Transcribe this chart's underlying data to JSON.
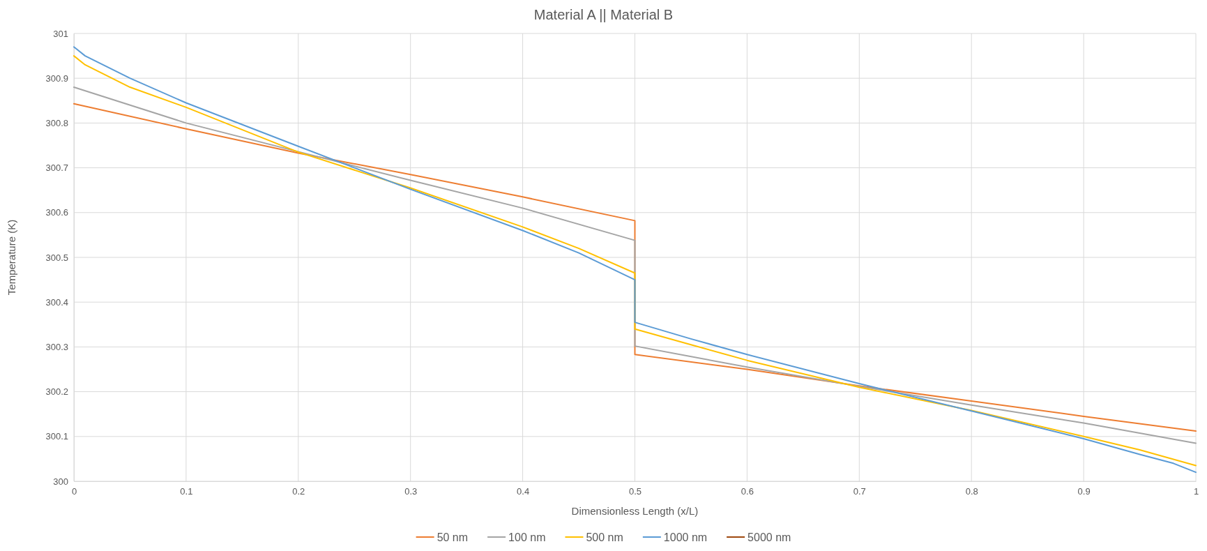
{
  "chart_data": {
    "type": "line",
    "title": "Material A || Material B",
    "xlabel": "Dimensionless Length (x/L)",
    "ylabel": "Temperature (K)",
    "xlim": [
      0,
      1
    ],
    "xticks": [
      0,
      0.1,
      0.2,
      0.3,
      0.4,
      0.5,
      0.6,
      0.7,
      0.8,
      0.9,
      1
    ],
    "ylim": [
      300,
      301
    ],
    "yticks": [
      300,
      300.1,
      300.2,
      300.3,
      300.4,
      300.5,
      300.6,
      300.7,
      300.8,
      300.9,
      301
    ],
    "grid": true,
    "legend": "bottom",
    "marker": "none",
    "line_style": "solid",
    "series": [
      {
        "name": "50 nm",
        "color": "#ed7d31",
        "x": [
          0,
          0.1,
          0.2,
          0.3,
          0.4,
          0.5,
          0.5,
          0.6,
          0.7,
          0.8,
          0.9,
          1
        ],
        "values": [
          300.843,
          300.787,
          300.733,
          300.685,
          300.635,
          300.582,
          300.283,
          300.25,
          300.213,
          300.179,
          300.145,
          300.112
        ]
      },
      {
        "name": "100 nm",
        "color": "#a5a5a5",
        "x": [
          0,
          0.1,
          0.3,
          0.4,
          0.5,
          0.5,
          0.6,
          0.7,
          0.8,
          0.9,
          1
        ],
        "values": [
          300.88,
          300.8,
          300.672,
          300.61,
          300.538,
          300.302,
          300.255,
          300.212,
          300.17,
          300.13,
          300.085
        ]
      },
      {
        "name": "500 nm",
        "color": "#ffc000",
        "x": [
          0,
          0.01,
          0.05,
          0.1,
          0.2,
          0.3,
          0.4,
          0.45,
          0.5,
          0.5,
          0.55,
          0.6,
          0.7,
          0.8,
          0.9,
          0.95,
          1
        ],
        "values": [
          300.95,
          300.93,
          300.88,
          300.835,
          300.735,
          300.655,
          300.568,
          300.52,
          300.465,
          300.34,
          300.305,
          300.27,
          300.21,
          300.158,
          300.1,
          300.07,
          300.035
        ]
      },
      {
        "name": "1000 nm",
        "color": "#5b9bd5",
        "x": [
          0,
          0.01,
          0.05,
          0.1,
          0.2,
          0.3,
          0.4,
          0.45,
          0.5,
          0.5,
          0.55,
          0.6,
          0.7,
          0.8,
          0.9,
          0.95,
          0.98,
          1
        ],
        "values": [
          300.97,
          300.95,
          300.9,
          300.845,
          300.748,
          300.652,
          300.56,
          300.51,
          300.45,
          300.355,
          300.318,
          300.283,
          300.218,
          300.157,
          300.095,
          300.06,
          300.04,
          300.02
        ]
      },
      {
        "name": "5000 nm",
        "color": "#9e480e"
      }
    ]
  }
}
